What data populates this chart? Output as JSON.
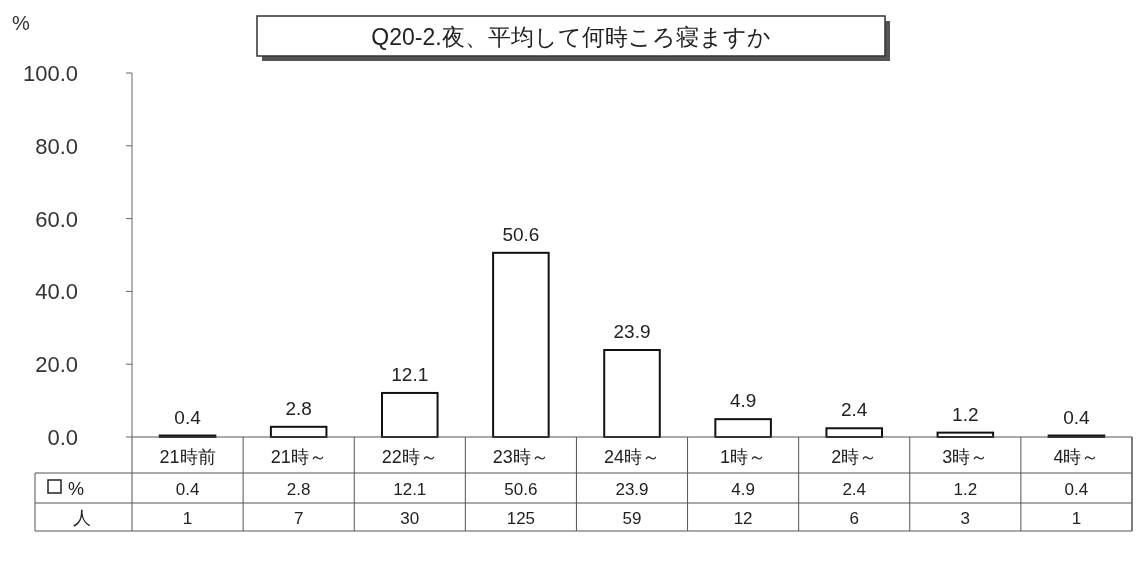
{
  "chart_data": {
    "type": "bar",
    "title": "Q20-2.夜、平均して何時ころ寝ますか",
    "ylabel": "%",
    "categories": [
      "21時前",
      "21時～",
      "22時～",
      "23時～",
      "24時～",
      "1時～",
      "2時～",
      "3時～",
      "4時～"
    ],
    "series": [
      {
        "name": "%",
        "color": "#ffffff",
        "values": [
          0.4,
          2.8,
          12.1,
          50.6,
          23.9,
          4.9,
          2.4,
          1.2,
          0.4
        ],
        "value_labels": [
          "0.4",
          "2.8",
          "12.1",
          "50.6",
          "23.9",
          "4.9",
          "2.4",
          "1.2",
          "0.4"
        ]
      }
    ],
    "ylim": [
      0,
      100
    ],
    "yticks": [
      {
        "value": 0,
        "label": "0.0"
      },
      {
        "value": 20,
        "label": "20.0"
      },
      {
        "value": 40,
        "label": "40.0"
      },
      {
        "value": 60,
        "label": "60.0"
      },
      {
        "value": 80,
        "label": "80.0"
      },
      {
        "value": 100,
        "label": "100.0"
      }
    ],
    "legend": "bottom",
    "grid": false,
    "annotations": [
      "人",
      "1",
      "7",
      "30",
      "125",
      "59",
      "12",
      "6",
      "3",
      "1",
      "0.4",
      "2.8",
      "12.1",
      "50.6",
      "23.9",
      "4.9",
      "2.4",
      "1.2",
      "0.4"
    ]
  }
}
